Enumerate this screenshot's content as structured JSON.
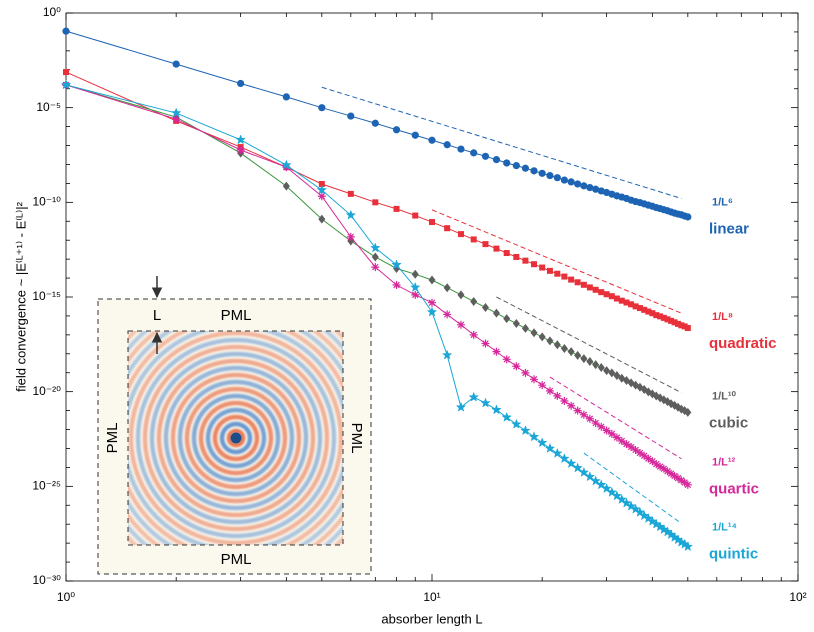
{
  "chart_data": {
    "type": "line",
    "xlabel": "absorber length L",
    "ylabel": "field convergence ~ |E⁽ᴸ⁺¹⁾ - E⁽ᴸ⁾|²",
    "xscale": "log",
    "yscale": "log",
    "xlim": [
      1,
      100
    ],
    "ylim": [
      1e-30,
      1
    ],
    "xticks": [
      {
        "value": 1,
        "label": "10⁰"
      },
      {
        "value": 10,
        "label": "10¹"
      },
      {
        "value": 100,
        "label": "10²"
      }
    ],
    "xminor_ticks": [
      2,
      3,
      4,
      5,
      6,
      7,
      8,
      9,
      20,
      30,
      40,
      50,
      60,
      70,
      80,
      90
    ],
    "yticks": [
      {
        "value": 1,
        "label": "10⁰"
      },
      {
        "value": 1e-05,
        "label": "10⁻⁵"
      },
      {
        "value": 1e-10,
        "label": "10⁻¹⁰"
      },
      {
        "value": 1e-15,
        "label": "10⁻¹⁵"
      },
      {
        "value": 1e-20,
        "label": "10⁻²⁰"
      },
      {
        "value": 1e-25,
        "label": "10⁻²⁵"
      },
      {
        "value": 1e-30,
        "label": "10⁻³⁰"
      }
    ],
    "yminor_ticks": [
      0.1,
      0.01,
      0.001,
      0.0001,
      1e-06,
      1e-07,
      1e-08,
      1e-09,
      1e-11,
      1e-12,
      1e-13,
      1e-14,
      1e-16,
      1e-17,
      1e-18,
      1e-19,
      1e-21,
      1e-22,
      1e-23,
      1e-24,
      1e-26,
      1e-27,
      1e-28,
      1e-29
    ],
    "x": [
      1,
      2,
      3,
      4,
      5,
      6,
      7,
      8,
      9,
      10,
      11,
      12,
      13,
      14,
      15,
      16,
      17,
      18,
      19,
      20,
      21,
      22,
      23,
      24,
      25,
      26,
      27,
      28,
      29,
      30,
      31,
      32,
      33,
      34,
      35,
      36,
      37,
      38,
      39,
      40,
      41,
      42,
      43,
      44,
      45,
      46,
      47,
      48,
      49,
      50
    ],
    "series": [
      {
        "name": "linear",
        "color": "#1e64b4",
        "line_color": "#1e64b4",
        "marker": "circle",
        "values": [
          0.11,
          0.002,
          0.00019,
          3.7e-05,
          1e-05,
          3.6e-06,
          1.5e-06,
          6.8e-07,
          3.5e-07,
          1.9e-07,
          1.1e-07,
          6.5e-08,
          4.1e-08,
          2.7e-08,
          1.8e-08,
          1.2e-08,
          8.7e-09,
          6.3e-09,
          4.6e-09,
          3.4e-09,
          2.6e-09,
          2e-09,
          1.5e-09,
          1.2e-09,
          9.3e-10,
          7.4e-10,
          6e-10,
          4.9e-10,
          4e-10,
          3.3e-10,
          2.7e-10,
          2.2e-10,
          1.9e-10,
          1.6e-10,
          1.3e-10,
          1.1e-10,
          9.7e-11,
          8.3e-11,
          7.1e-11,
          6.2e-11,
          5.3e-11,
          4.7e-11,
          4.1e-11,
          3.6e-11,
          3.1e-11,
          2.7e-11,
          2.4e-11,
          2.2e-11,
          1.9e-11,
          1.7e-11
        ],
        "reference": {
          "label": "1/L⁶",
          "x": [
            5,
            48
          ],
          "values": [
            0.00012,
            1.6e-10
          ]
        }
      },
      {
        "name": "quadratic",
        "color": "#e8303a",
        "line_color": "#e8303a",
        "marker": "square",
        "values": [
          0.00076,
          2e-06,
          8.3e-08,
          7.2e-09,
          9.3e-10,
          2.8e-10,
          1e-10,
          4.5e-11,
          2e-11,
          9.1e-12,
          4.3e-12,
          2.1e-12,
          1.1e-12,
          6.2e-13,
          3.6e-13,
          2.1e-13,
          1.3e-13,
          8.3e-14,
          5.4e-14,
          3.6e-14,
          2.4e-14,
          1.7e-14,
          1.2e-14,
          8.3e-15,
          6e-15,
          4.4e-15,
          3.2e-15,
          2.4e-15,
          1.8e-15,
          1.4e-15,
          1.1e-15,
          8.3e-16,
          6.4e-16,
          5.1e-16,
          4.1e-16,
          3.2e-16,
          2.6e-16,
          2.1e-16,
          1.7e-16,
          1.4e-16,
          1.1e-16,
          9.5e-17,
          7.9e-17,
          6.6e-17,
          5.5e-17,
          4.6e-17,
          3.8e-17,
          3.2e-17,
          2.8e-17,
          2.3e-17
        ],
        "reference": {
          "label": "1/L⁸",
          "x": [
            10,
            48
          ],
          "values": [
            4e-11,
            1.4e-16
          ]
        }
      },
      {
        "name": "cubic",
        "color": "#5e5e5e",
        "line_color": "#3a963a",
        "marker": "diamond",
        "values": [
          0.00016,
          3.2e-06,
          4e-08,
          7.2e-10,
          1.3e-11,
          9.1e-13,
          1.3e-13,
          3.2e-14,
          1.6e-14,
          7.9e-15,
          3.1e-15,
          1.3e-15,
          5.8e-16,
          2.8e-16,
          1.4e-16,
          7.2e-17,
          4e-17,
          2.2e-17,
          1.3e-17,
          7.8e-18,
          4.8e-18,
          3e-18,
          1.9e-18,
          1.3e-18,
          8.3e-19,
          5.6e-19,
          3.9e-19,
          2.7e-19,
          1.9e-19,
          1.3e-19,
          9.8e-20,
          7.1e-20,
          5.1e-20,
          3.9e-20,
          2.9e-20,
          2.2e-20,
          1.7e-20,
          1.3e-20,
          9.8e-21,
          7.6e-21,
          5.9e-21,
          4.7e-21,
          3.7e-21,
          3e-21,
          2.3e-21,
          1.9e-21,
          1.5e-21,
          1.2e-21,
          1e-21,
          8.1e-22
        ],
        "reference": {
          "label": "1/L¹⁰",
          "x": [
            15,
            48
          ],
          "values": [
            1e-15,
            8.9e-21
          ]
        }
      },
      {
        "name": "quartic",
        "color": "#d6289a",
        "line_color": "#d6289a",
        "marker": "asterisk",
        "values": [
          0.00016,
          2.5e-06,
          5.8e-08,
          7.2e-09,
          2.1e-10,
          1.5e-12,
          3.8e-14,
          4.3e-15,
          1.3e-15,
          5e-16,
          1.2e-16,
          3.4e-17,
          1e-17,
          3.5e-18,
          1.3e-18,
          5.1e-19,
          2.2e-19,
          9.8e-20,
          4.5e-20,
          2.2e-20,
          1.1e-20,
          6e-21,
          3.2e-21,
          1.8e-21,
          1e-21,
          6e-22,
          3.7e-22,
          2.2e-22,
          1.4e-22,
          8.9e-23,
          5.9e-23,
          3.8e-23,
          2.5e-23,
          1.7e-23,
          1.2e-23,
          8.3e-24,
          5.8e-24,
          4.1e-24,
          2.9e-24,
          2.1e-24,
          1.5e-24,
          1.1e-24,
          8.5e-25,
          6.3e-25,
          4.7e-25,
          3.5e-25,
          2.7e-25,
          2.1e-25,
          1.6e-25,
          1.2e-25
        ],
        "reference": {
          "label": "1/L¹²",
          "x": [
            21,
            48
          ],
          "values": [
            5.9e-20,
            2.9e-24
          ]
        }
      },
      {
        "name": "quintic",
        "color": "#1aa6d6",
        "line_color": "#1aa6d6",
        "marker": "star",
        "values": [
          0.00016,
          5.2e-06,
          2e-07,
          9.3e-09,
          4.5e-10,
          2.1e-11,
          3.9e-13,
          5e-14,
          3.2e-15,
          1.6e-16,
          8.5e-19,
          1.5e-21,
          5.1e-21,
          2.5e-21,
          1.1e-21,
          4.4e-22,
          1.9e-22,
          8.7e-23,
          4.1e-23,
          2e-23,
          1e-23,
          5.5e-24,
          2.9e-24,
          1.6e-24,
          9.3e-25,
          5.4e-25,
          3.2e-25,
          1.9e-25,
          1.2e-25,
          7.6e-26,
          4.8e-26,
          3.1e-26,
          2e-26,
          1.3e-26,
          8.9e-27,
          6.2e-27,
          4.2e-27,
          2.8e-27,
          2e-27,
          1.4e-27,
          1e-27,
          7.2e-28,
          5.2e-28,
          3.9e-28,
          2.8e-28,
          2e-28,
          1.5e-28,
          1.1e-28,
          8.7e-29,
          6.5e-29
        ],
        "reference": {
          "label": "1/L¹⁴",
          "x": [
            26,
            48
          ],
          "values": [
            5.7e-24,
            1.1e-27
          ]
        }
      }
    ]
  },
  "inset": {
    "top": "PML",
    "bottom": "PML",
    "left": "PML",
    "right": "PML",
    "thickness": "L"
  }
}
